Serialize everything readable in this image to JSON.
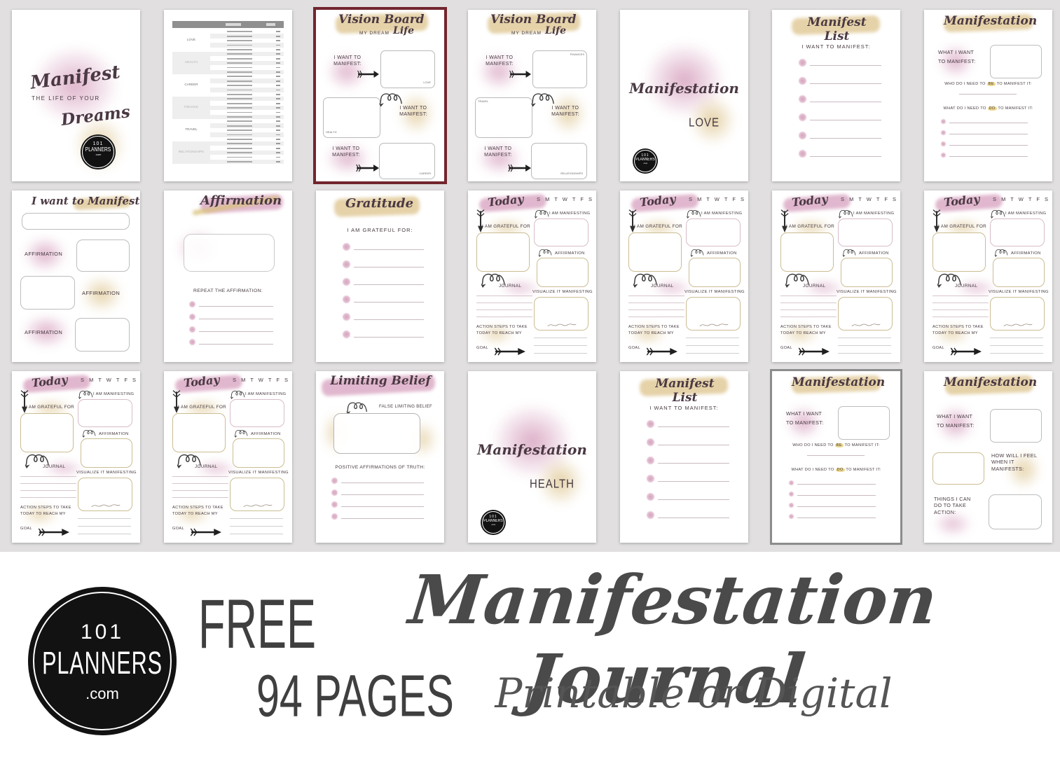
{
  "poster_bg": "#e1dfe0",
  "palette": {
    "pink": "#d9a6c2",
    "gold": "#dfc793",
    "maroon_border": "#72252d",
    "gray_border": "#8c8c8c",
    "text_dark": "#463a41",
    "footer_text": "#3f3f3f"
  },
  "logo": {
    "l1": "101",
    "l2": "PLANNERS",
    "l3": ".com"
  },
  "templates": {
    "cover": {
      "title": "Manifest",
      "sub": "THE LIFE OF YOUR",
      "sub2": "Dreams"
    },
    "vision": {
      "title": "Vision Board",
      "my_dream": "MY DREAM",
      "life": "Life",
      "want": "I WANT TO MANIFEST:"
    },
    "section": {
      "title": "Manifestation"
    },
    "list": {
      "title": "Manifest List",
      "want": "I WANT TO MANIFEST:"
    },
    "bedo": {
      "title": "Manifestation",
      "what": "WHAT I WANT",
      "to_manifest": "TO MANIFEST:",
      "who_pre": "WHO DO I NEED TO ",
      "who_hl": "BE",
      "who_post": " TO MANIFEST IT:",
      "do_pre": "WHAT DO I NEED TO ",
      "do_hl": "DO",
      "do_post": " TO MANIFEST IT:"
    },
    "want_manifest": {
      "title": "I want to Manifest",
      "affirmation": "AFFIRMATION"
    },
    "affirmation": {
      "title": "Affirmation",
      "repeat": "REPEAT THE AFFIRMATION:"
    },
    "gratitude": {
      "title": "Gratitude",
      "grateful": "I AM GRATEFUL FOR:"
    },
    "today": {
      "title": "Today",
      "days": "S M T W T F S",
      "grateful": "I AM GRATEFUL FOR",
      "manifesting": "I AM MANIFESTING",
      "affirmation": "AFFIRMATION",
      "journal": "JOURNAL",
      "visualize": "VISUALIZE IT MANIFESTING",
      "action1": "ACTION STEPS TO TAKE",
      "action2": "TODAY TO REACH MY",
      "action3": "GOAL"
    },
    "limiting": {
      "title": "Limiting Belief",
      "false_label": "FALSE LIMITING BELIEF",
      "positive": "POSITIVE AFFIRMATIONS OF TRUTH:"
    },
    "feel": {
      "title": "Manifestation",
      "what": "WHAT I WANT",
      "to_manifest": "TO MANIFEST:",
      "how": "HOW WILL I FEEL WHEN IT MANIFESTS:",
      "things": "THINGS I CAN DO TO TAKE ACTION:"
    }
  },
  "toc": {
    "categories": [
      "LOVE",
      "HEALTH",
      "CAREER",
      "FINANCE",
      "TRAVEL",
      "RELATIONSHIPS"
    ]
  },
  "pages": [
    {
      "type": "cover"
    },
    {
      "type": "toc"
    },
    {
      "type": "vision",
      "border": "maroon",
      "tags": [
        "LOVE",
        "HEALTH",
        "CAREER"
      ],
      "tag_pos": [
        "br",
        "bl",
        "br"
      ]
    },
    {
      "type": "vision",
      "tags": [
        "FINANCES",
        "TRAVEL",
        "RELATIONSHIPS"
      ],
      "tag_pos": [
        "tr",
        "tl",
        "br"
      ]
    },
    {
      "type": "section",
      "word": "LOVE"
    },
    {
      "type": "list"
    },
    {
      "type": "bedo"
    },
    {
      "type": "want_manifest"
    },
    {
      "type": "affirmation"
    },
    {
      "type": "gratitude"
    },
    {
      "type": "today"
    },
    {
      "type": "today"
    },
    {
      "type": "today"
    },
    {
      "type": "today"
    },
    {
      "type": "today"
    },
    {
      "type": "today"
    },
    {
      "type": "limiting"
    },
    {
      "type": "section",
      "word": "HEALTH"
    },
    {
      "type": "list"
    },
    {
      "type": "bedo",
      "border": "gray"
    },
    {
      "type": "feel"
    }
  ],
  "footer": {
    "free": "FREE",
    "title": "Manifestation Journal",
    "pages_count": "94 PAGES",
    "subtitle": "Printable or Digital"
  }
}
